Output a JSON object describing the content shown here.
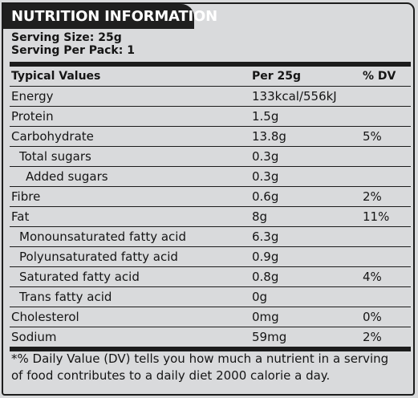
{
  "header": {
    "title": "NUTRITION INFORMATION"
  },
  "serving": {
    "size": "Serving Size: 25g",
    "per_pack": "Serving Per Pack: 1"
  },
  "table": {
    "columns": [
      "Typical Values",
      "Per 25g",
      "% DV"
    ],
    "rows": [
      {
        "name": "Energy",
        "per": "133kcal/556kJ",
        "dv": ""
      },
      {
        "name": "Protein",
        "per": "1.5g",
        "dv": ""
      },
      {
        "name": "Carbohydrate",
        "per": "13.8g",
        "dv": "5%"
      },
      {
        "name": "Total sugars",
        "per": "0.3g",
        "dv": ""
      },
      {
        "name": "Added sugars",
        "per": "0.3g",
        "dv": ""
      },
      {
        "name": "Fibre",
        "per": "0.6g",
        "dv": "2%"
      },
      {
        "name": "Fat",
        "per": "8g",
        "dv": "11%"
      },
      {
        "name": "Monounsaturated fatty acid",
        "per": "6.3g",
        "dv": ""
      },
      {
        "name": "Polyunsaturated fatty acid",
        "per": "0.9g",
        "dv": ""
      },
      {
        "name": "Saturated fatty acid",
        "per": "0.8g",
        "dv": "4%"
      },
      {
        "name": "Trans fatty acid",
        "per": "0g",
        "dv": ""
      },
      {
        "name": "Cholesterol",
        "per": "0mg",
        "dv": "0%"
      },
      {
        "name": "Sodium",
        "per": "59mg",
        "dv": "2%"
      }
    ]
  },
  "footnote": {
    "line1": "*% Daily Value (DV) tells you how much a nutrient in a serving",
    "line2": "of food contributes to a daily diet 2000 calorie a day."
  },
  "colors": {
    "background": "#d9dadc",
    "header_bar": "#1f1f1f",
    "text": "#151515"
  }
}
